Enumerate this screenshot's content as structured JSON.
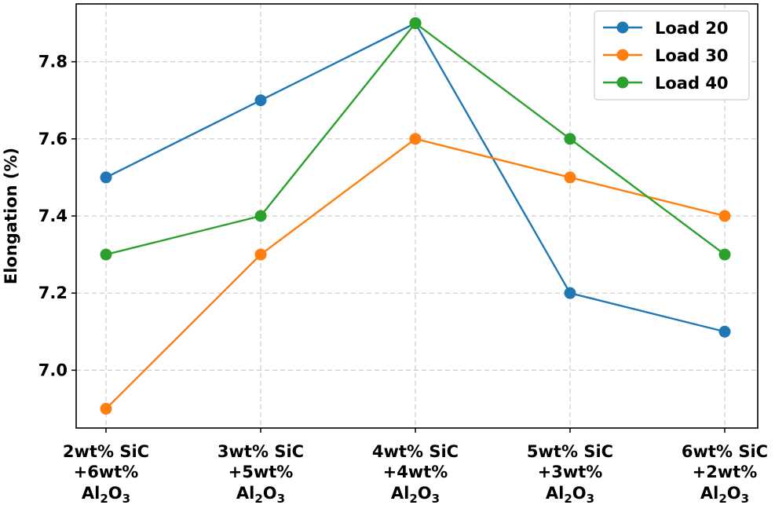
{
  "chart_data": {
    "type": "line",
    "title": "",
    "xlabel": "",
    "ylabel": "Elongation (%)",
    "ylim": [
      6.85,
      7.95
    ],
    "yticks": [
      "7.0",
      "7.2",
      "7.4",
      "7.6",
      "7.8"
    ],
    "grid": true,
    "legend_position": "top-right",
    "categories": [
      {
        "line1": "2wt% SiC",
        "line2": "+6wt%",
        "base": "Al",
        "sub": "2",
        "tail": "O",
        "sub2": "3"
      },
      {
        "line1": "3wt% SiC",
        "line2": "+5wt%",
        "base": "Al",
        "sub": "2",
        "tail": "O",
        "sub2": "3"
      },
      {
        "line1": "4wt% SiC",
        "line2": "+4wt%",
        "base": "Al",
        "sub": "2",
        "tail": "O",
        "sub2": "3"
      },
      {
        "line1": "5wt% SiC",
        "line2": "+3wt%",
        "base": "Al",
        "sub": "2",
        "tail": "O",
        "sub2": "3"
      },
      {
        "line1": "6wt% SiC",
        "line2": "+2wt%",
        "base": "Al",
        "sub": "2",
        "tail": "O",
        "sub2": "3"
      }
    ],
    "series": [
      {
        "name": "Load 20",
        "color": "#1f77b4",
        "values": [
          7.5,
          7.7,
          7.9,
          7.2,
          7.1
        ]
      },
      {
        "name": "Load 30",
        "color": "#ff7f0e",
        "values": [
          6.9,
          7.3,
          7.6,
          7.5,
          7.4
        ]
      },
      {
        "name": "Load 40",
        "color": "#2ca02c",
        "values": [
          7.3,
          7.4,
          7.9,
          7.6,
          7.3
        ]
      }
    ]
  }
}
